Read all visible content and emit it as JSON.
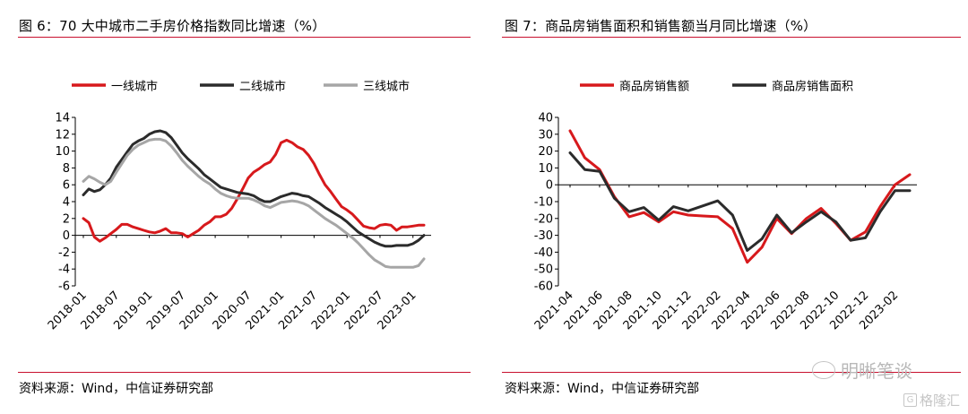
{
  "left": {
    "title": "图 6：70 大中城市二手房价格指数同比增速（%）",
    "source": "资料来源：Wind，中信证券研究部"
  },
  "right": {
    "title": "图 7：商品房销售面积和销售额当月同比增速（%）",
    "source": "资料来源：Wind，中信证券研究部"
  },
  "watermark": {
    "wechat_text": "明晰笔谈",
    "corner_text": "格隆汇"
  },
  "chart_data": [
    {
      "type": "line",
      "title": "",
      "xlabel": "",
      "ylabel": "",
      "ylim": [
        -6,
        14
      ],
      "yticks": [
        -6,
        -4,
        -2,
        0,
        2,
        4,
        6,
        8,
        10,
        12,
        14
      ],
      "x_tick_labels": [
        "2018-01",
        "2018-07",
        "2019-01",
        "2019-07",
        "2020-01",
        "2020-07",
        "2021-01",
        "2021-07",
        "2022-01",
        "2022-07",
        "2023-01"
      ],
      "x": [
        "2018-01",
        "2018-02",
        "2018-03",
        "2018-04",
        "2018-05",
        "2018-06",
        "2018-07",
        "2018-08",
        "2018-09",
        "2018-10",
        "2018-11",
        "2018-12",
        "2019-01",
        "2019-02",
        "2019-03",
        "2019-04",
        "2019-05",
        "2019-06",
        "2019-07",
        "2019-08",
        "2019-09",
        "2019-10",
        "2019-11",
        "2019-12",
        "2020-01",
        "2020-02",
        "2020-03",
        "2020-04",
        "2020-05",
        "2020-06",
        "2020-07",
        "2020-08",
        "2020-09",
        "2020-10",
        "2020-11",
        "2020-12",
        "2021-01",
        "2021-02",
        "2021-03",
        "2021-04",
        "2021-05",
        "2021-06",
        "2021-07",
        "2021-08",
        "2021-09",
        "2021-10",
        "2021-11",
        "2021-12",
        "2022-01",
        "2022-02",
        "2022-03",
        "2022-04",
        "2022-05",
        "2022-06",
        "2022-07",
        "2022-08",
        "2022-09",
        "2022-10",
        "2022-11",
        "2022-12",
        "2023-01",
        "2023-02",
        "2023-03"
      ],
      "legend_position": "top",
      "grid": false,
      "series": [
        {
          "name": "一线城市",
          "color": "#d7191c",
          "values": [
            2.0,
            1.5,
            -0.2,
            -0.7,
            -0.3,
            0.2,
            0.7,
            1.3,
            1.3,
            1.0,
            0.8,
            0.6,
            0.4,
            0.3,
            0.5,
            0.8,
            0.3,
            0.3,
            0.2,
            -0.2,
            0.2,
            0.6,
            1.2,
            1.6,
            2.2,
            2.2,
            2.5,
            3.2,
            4.3,
            5.5,
            6.8,
            7.5,
            7.9,
            8.4,
            8.7,
            9.6,
            11.0,
            11.3,
            11.0,
            10.5,
            10.2,
            9.5,
            8.5,
            7.2,
            6.0,
            5.2,
            4.3,
            3.4,
            3.0,
            2.5,
            1.8,
            1.1,
            0.9,
            0.8,
            1.2,
            1.3,
            1.2,
            0.6,
            1.0,
            1.0,
            1.1,
            1.2,
            1.2
          ]
        },
        {
          "name": "二线城市",
          "color": "#2b2b2b",
          "values": [
            4.8,
            5.5,
            5.2,
            5.4,
            6.0,
            6.8,
            8.1,
            9.0,
            9.9,
            10.8,
            11.2,
            11.5,
            12.0,
            12.3,
            12.4,
            12.2,
            11.6,
            10.7,
            9.8,
            9.1,
            8.5,
            7.9,
            7.2,
            6.7,
            6.2,
            5.7,
            5.5,
            5.3,
            5.1,
            5.0,
            4.9,
            4.7,
            4.3,
            4.0,
            4.0,
            4.3,
            4.6,
            4.8,
            5.0,
            4.9,
            4.7,
            4.6,
            4.2,
            3.8,
            3.3,
            2.9,
            2.5,
            2.1,
            1.6,
            1.0,
            0.4,
            0.0,
            -0.4,
            -0.8,
            -1.1,
            -1.3,
            -1.3,
            -1.2,
            -1.2,
            -1.2,
            -1.0,
            -0.6,
            0.0
          ]
        },
        {
          "name": "三线城市",
          "color": "#a6a6a6",
          "values": [
            6.4,
            7.0,
            6.7,
            6.3,
            6.0,
            6.4,
            7.5,
            8.5,
            9.5,
            10.2,
            10.7,
            11.0,
            11.3,
            11.4,
            11.4,
            11.2,
            10.6,
            9.8,
            8.9,
            8.2,
            7.6,
            7.0,
            6.5,
            6.1,
            5.5,
            5.0,
            4.7,
            4.5,
            4.4,
            4.4,
            4.4,
            4.2,
            3.9,
            3.5,
            3.3,
            3.6,
            3.9,
            4.0,
            4.1,
            4.0,
            3.8,
            3.5,
            3.0,
            2.5,
            2.0,
            1.6,
            1.2,
            0.7,
            0.2,
            -0.3,
            -0.9,
            -1.6,
            -2.3,
            -2.9,
            -3.3,
            -3.7,
            -3.8,
            -3.8,
            -3.8,
            -3.8,
            -3.8,
            -3.6,
            -2.8
          ]
        }
      ]
    },
    {
      "type": "line",
      "title": "",
      "xlabel": "",
      "ylabel": "",
      "ylim": [
        -60,
        40
      ],
      "yticks": [
        -60,
        -50,
        -40,
        -30,
        -20,
        -10,
        0,
        10,
        20,
        30,
        40
      ],
      "x_tick_labels": [
        "2021-04",
        "2021-06",
        "2021-08",
        "2021-10",
        "2021-12",
        "2022-02",
        "2022-04",
        "2022-06",
        "2022-08",
        "2022-10",
        "2022-12",
        "2023-02"
      ],
      "x": [
        "2021-04",
        "2021-05",
        "2021-06",
        "2021-07",
        "2021-08",
        "2021-09",
        "2021-10",
        "2021-11",
        "2021-12",
        "2022-01",
        "2022-02",
        "2022-03",
        "2022-04",
        "2022-05",
        "2022-06",
        "2022-07",
        "2022-08",
        "2022-09",
        "2022-10",
        "2022-11",
        "2022-12",
        "2023-01",
        "2023-02",
        "2023-03"
      ],
      "legend_position": "top",
      "grid": false,
      "series": [
        {
          "name": "商品房销售额",
          "color": "#d7191c",
          "values": [
            32.0,
            16.0,
            9.0,
            -7.0,
            -19.0,
            -16.5,
            -22.0,
            -16.0,
            -18.0,
            -18.5,
            -19.0,
            -26.0,
            -46.0,
            -37.0,
            -20.0,
            -29.0,
            -20.0,
            -14.0,
            -23.0,
            -33.0,
            -28.0,
            -13.0,
            0.0,
            6.0
          ]
        },
        {
          "name": "商品房销售面积",
          "color": "#2b2b2b",
          "values": [
            19.0,
            9.0,
            8.0,
            -8.0,
            -16.0,
            -13.5,
            -21.0,
            -13.0,
            -15.5,
            -12.5,
            -9.5,
            -18.0,
            -39.0,
            -32.0,
            -18.0,
            -28.5,
            -22.0,
            -16.0,
            -22.0,
            -33.0,
            -31.5,
            -16.0,
            -3.5,
            -3.5
          ]
        }
      ]
    }
  ]
}
